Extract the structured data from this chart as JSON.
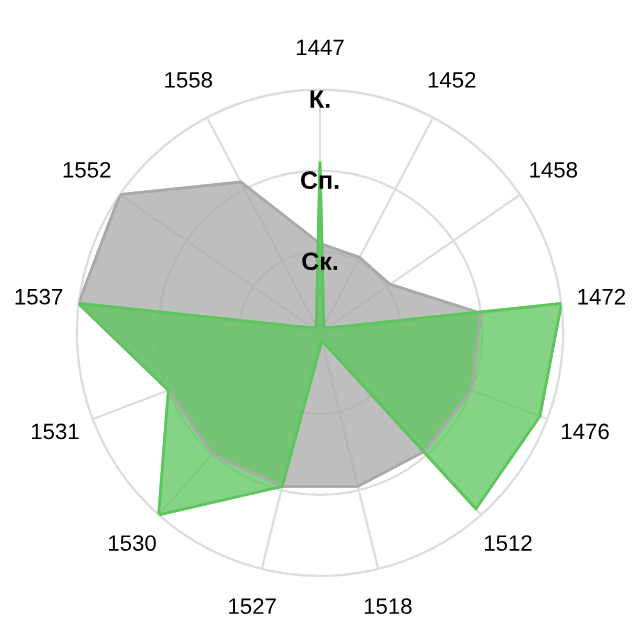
{
  "chart_data": {
    "type": "radar",
    "categories": [
      "1447",
      "1452",
      "1458",
      "1472",
      "1476",
      "1512",
      "1518",
      "1527",
      "1530",
      "1531",
      "1537",
      "1552",
      "1558"
    ],
    "ylim": [
      0,
      3
    ],
    "yticks": [
      {
        "value": 1,
        "label": "Ск."
      },
      {
        "value": 2,
        "label": "Сп."
      },
      {
        "value": 3,
        "label": "К."
      }
    ],
    "grid": true,
    "series": [
      {
        "color": "#a9a9a9",
        "values": [
          1.1,
          1.05,
          1.05,
          2.0,
          2.0,
          1.95,
          1.95,
          1.95,
          2.0,
          2.0,
          3.0,
          3.0,
          2.1
        ]
      },
      {
        "color": "#5cc65c",
        "values": [
          2.1,
          0.1,
          0.1,
          3.0,
          2.9,
          2.9,
          0.1,
          1.95,
          3.0,
          2.0,
          3.0,
          0.1,
          0.1
        ]
      }
    ]
  }
}
